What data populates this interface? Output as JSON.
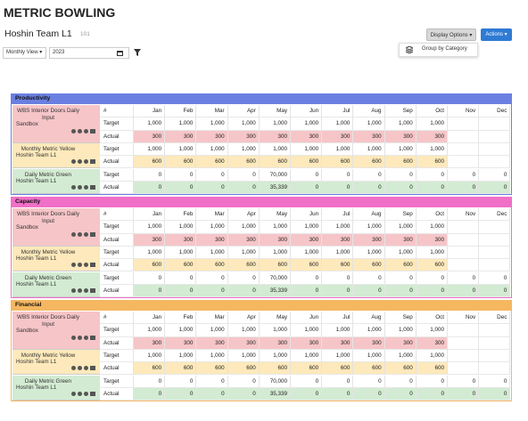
{
  "header": {
    "title": "METRIC BOWLING",
    "team": "Hoshin Team L1",
    "team_id": "101",
    "display_options": "Display Options ▾",
    "actions": "Actions ▾",
    "menu_item": "Group by Category",
    "view": "Monthly View ▾",
    "year": "2023"
  },
  "table": {
    "columns": [
      "#",
      "Jan",
      "Feb",
      "Mar",
      "Apr",
      "May",
      "Jun",
      "Jul",
      "Aug",
      "Sep",
      "Oct",
      "Nov",
      "Dec"
    ],
    "row_labels": [
      "Target",
      "Actual"
    ],
    "sections": [
      {
        "title": "Productivity",
        "color": "#6b7fe0",
        "metrics": [
          {
            "name": "WBS Interior Doors Daily Input",
            "owner": "Sandbox",
            "color": "#f6c5c8",
            "target": [
              "1,000",
              "1,000",
              "1,000",
              "1,000",
              "1,000",
              "1,000",
              "1,000",
              "1,000",
              "1,000",
              "1,000",
              null,
              null
            ],
            "actual": [
              "300",
              "300",
              "300",
              "300",
              "300",
              "300",
              "300",
              "300",
              "300",
              "300",
              null,
              null
            ]
          },
          {
            "name": "Monthly Metric Yellow",
            "owner": "Hoshin Team L1",
            "color": "#fde9bb",
            "target": [
              "1,000",
              "1,000",
              "1,000",
              "1,000",
              "1,000",
              "1,000",
              "1,000",
              "1,000",
              "1,000",
              "1,000",
              null,
              null
            ],
            "actual": [
              "600",
              "600",
              "600",
              "600",
              "600",
              "600",
              "600",
              "600",
              "600",
              "600",
              null,
              null
            ]
          },
          {
            "name": "Daily Metric Green",
            "owner": "Hoshin Team L1",
            "color": "#d3ebd2",
            "target": [
              "0",
              "0",
              "0",
              "0",
              "70,000",
              "0",
              "0",
              "0",
              "0",
              "0",
              "0",
              "0"
            ],
            "actual": [
              "0",
              "0",
              "0",
              "0",
              "35,339",
              "0",
              "0",
              "0",
              "0",
              "0",
              "0",
              "0"
            ]
          }
        ]
      },
      {
        "title": "Capacity",
        "color": "#f06fc7",
        "metrics": [
          {
            "name": "WBS Interior Doors Daily Input",
            "owner": "Sandbox",
            "color": "#f6c5c8",
            "target": [
              "1,000",
              "1,000",
              "1,000",
              "1,000",
              "1,000",
              "1,000",
              "1,000",
              "1,000",
              "1,000",
              "1,000",
              null,
              null
            ],
            "actual": [
              "300",
              "300",
              "300",
              "300",
              "300",
              "300",
              "300",
              "300",
              "300",
              "300",
              null,
              null
            ]
          },
          {
            "name": "Monthly Metric Yellow",
            "owner": "Hoshin Team L1",
            "color": "#fde9bb",
            "target": [
              "1,000",
              "1,000",
              "1,000",
              "1,000",
              "1,000",
              "1,000",
              "1,000",
              "1,000",
              "1,000",
              "1,000",
              null,
              null
            ],
            "actual": [
              "600",
              "600",
              "600",
              "600",
              "600",
              "600",
              "600",
              "600",
              "600",
              "600",
              null,
              null
            ]
          },
          {
            "name": "Daily Metric Green",
            "owner": "Hoshin Team L1",
            "color": "#d3ebd2",
            "target": [
              "0",
              "0",
              "0",
              "0",
              "70,000",
              "0",
              "0",
              "0",
              "0",
              "0",
              "0",
              "0"
            ],
            "actual": [
              "0",
              "0",
              "0",
              "0",
              "35,339",
              "0",
              "0",
              "0",
              "0",
              "0",
              "0",
              "0"
            ]
          }
        ]
      },
      {
        "title": "Financial",
        "color": "#f5b760",
        "metrics": [
          {
            "name": "WBS Interior Doors Daily Input",
            "owner": "Sandbox",
            "color": "#f6c5c8",
            "target": [
              "1,000",
              "1,000",
              "1,000",
              "1,000",
              "1,000",
              "1,000",
              "1,000",
              "1,000",
              "1,000",
              "1,000",
              null,
              null
            ],
            "actual": [
              "300",
              "300",
              "300",
              "300",
              "300",
              "300",
              "300",
              "300",
              "300",
              "300",
              null,
              null
            ]
          },
          {
            "name": "Monthly Metric Yellow",
            "owner": "Hoshin Team L1",
            "color": "#fde9bb",
            "target": [
              "1,000",
              "1,000",
              "1,000",
              "1,000",
              "1,000",
              "1,000",
              "1,000",
              "1,000",
              "1,000",
              "1,000",
              null,
              null
            ],
            "actual": [
              "600",
              "600",
              "600",
              "600",
              "600",
              "600",
              "600",
              "600",
              "600",
              "600",
              null,
              null
            ]
          },
          {
            "name": "Daily Metric Green",
            "owner": "Hoshin Team L1",
            "color": "#d3ebd2",
            "target": [
              "0",
              "0",
              "0",
              "0",
              "70,000",
              "0",
              "0",
              "0",
              "0",
              "0",
              "0",
              "0"
            ],
            "actual": [
              "0",
              "0",
              "0",
              "0",
              "35,339",
              "0",
              "0",
              "0",
              "0",
              "0",
              "0",
              "0"
            ]
          }
        ]
      }
    ]
  }
}
